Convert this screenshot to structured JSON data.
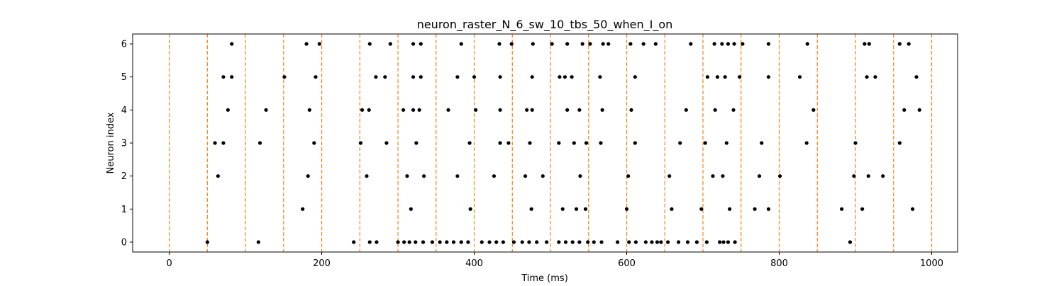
{
  "chart_data": {
    "type": "scatter",
    "title": "neuron_raster_N_6_sw_10_tbs_50_when_I_on",
    "xlabel": "Time (ms)",
    "ylabel": "Neuron index",
    "xlim": [
      -48,
      1034
    ],
    "ylim": [
      -0.3,
      6.3
    ],
    "xticks": [
      0,
      200,
      400,
      600,
      800,
      1000
    ],
    "yticks": [
      0,
      1,
      2,
      3,
      4,
      5,
      6
    ],
    "grid": false,
    "marker_color": "#000000",
    "vline_color": "#ff7f0e",
    "vlines": [
      0,
      50,
      100,
      150,
      200,
      250,
      300,
      350,
      400,
      450,
      500,
      550,
      600,
      650,
      700,
      750,
      800,
      850,
      900,
      950,
      1000
    ],
    "spikes": [
      {
        "neuron": 0,
        "times": [
          50,
          117,
          242,
          263,
          272,
          300,
          308,
          315,
          323,
          333,
          345,
          355,
          364,
          373,
          383,
          392,
          410,
          420,
          429,
          438,
          452,
          463,
          472,
          482,
          495,
          511,
          520,
          529,
          538,
          549,
          557,
          567,
          588,
          603,
          612,
          625,
          633,
          640,
          645,
          654,
          668,
          680,
          692,
          705,
          722,
          727,
          733,
          742,
          893
        ]
      },
      {
        "neuron": 1,
        "times": [
          175,
          317,
          395,
          475,
          516,
          534,
          546,
          600,
          659,
          698,
          735,
          768,
          786,
          882,
          909,
          975
        ]
      },
      {
        "neuron": 2,
        "times": [
          64,
          182,
          259,
          312,
          334,
          378,
          426,
          467,
          490,
          539,
          602,
          656,
          713,
          726,
          774,
          801,
          898,
          917,
          936
        ]
      },
      {
        "neuron": 3,
        "times": [
          60,
          71,
          119,
          190,
          251,
          285,
          324,
          394,
          434,
          445,
          473,
          511,
          531,
          547,
          566,
          611,
          670,
          703,
          731,
          777,
          836,
          900,
          958
        ]
      },
      {
        "neuron": 4,
        "times": [
          77,
          127,
          184,
          253,
          262,
          307,
          320,
          328,
          366,
          402,
          434,
          469,
          476,
          522,
          538,
          568,
          606,
          678,
          716,
          740,
          845,
          964,
          984
        ]
      },
      {
        "neuron": 5,
        "times": [
          71,
          82,
          151,
          192,
          271,
          283,
          320,
          330,
          378,
          400,
          434,
          476,
          512,
          519,
          528,
          565,
          611,
          706,
          719,
          729,
          748,
          786,
          827,
          915,
          926,
          980
        ]
      },
      {
        "neuron": 6,
        "times": [
          82,
          180,
          197,
          263,
          290,
          320,
          330,
          383,
          433,
          449,
          477,
          502,
          522,
          542,
          552,
          569,
          576,
          605,
          622,
          638,
          684,
          715,
          725,
          733,
          741,
          752,
          786,
          837,
          912,
          918,
          958,
          970
        ]
      }
    ]
  }
}
